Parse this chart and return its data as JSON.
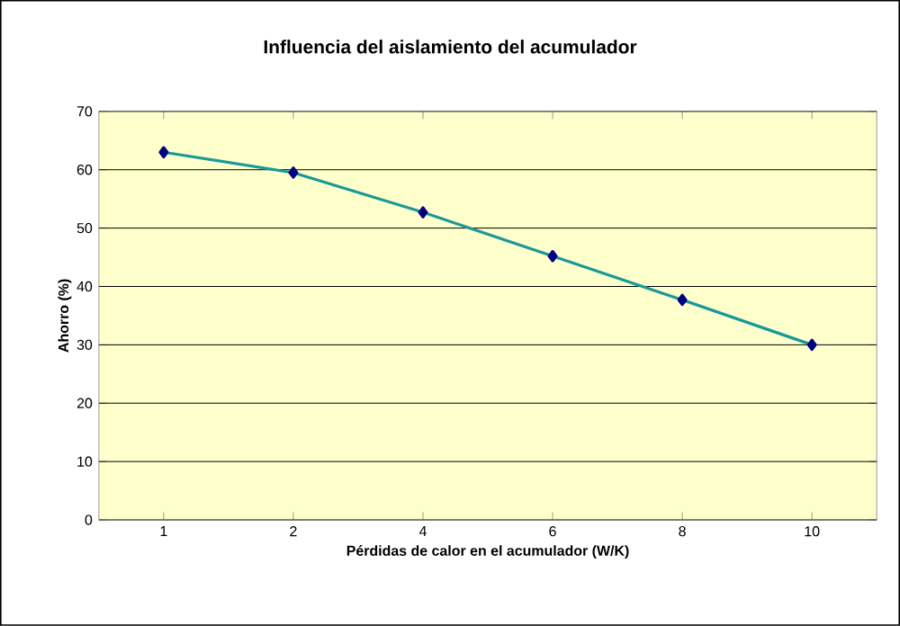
{
  "chart_data": {
    "type": "line",
    "title": "Influencia del aislamiento del acumulador",
    "xlabel": "Pérdidas de calor en el acumulador (W/K)",
    "ylabel": "Ahorro (%)",
    "categories": [
      "1",
      "2",
      "4",
      "6",
      "8",
      "10"
    ],
    "series": [
      {
        "color": "#1a9999",
        "values": [
          63,
          59.5,
          52.7,
          45.2,
          37.7,
          30
        ]
      }
    ],
    "ylim": [
      0,
      70
    ],
    "yticks": [
      0,
      10,
      20,
      30,
      40,
      50,
      60,
      70
    ],
    "grid": "y",
    "marker": "diamond",
    "line_style": "solid"
  }
}
